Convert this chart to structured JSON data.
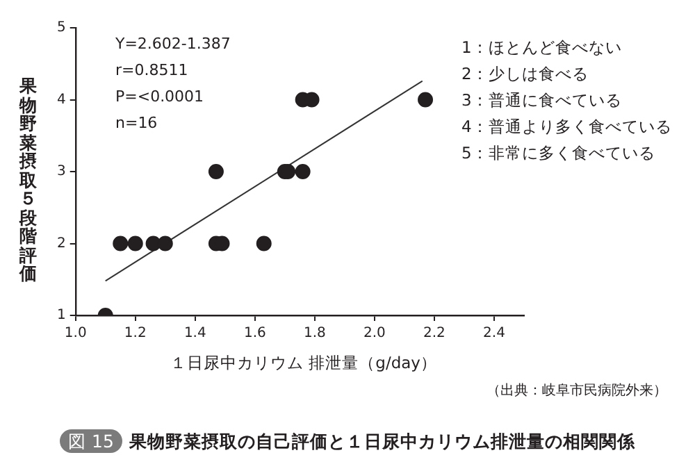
{
  "chart_data": {
    "type": "scatter",
    "title": "果物野菜摂取の自己評価と１日尿中カリウム排泄量の相関関係",
    "xlabel": "１日尿中カリウム 排泄量（g/day）",
    "ylabel": "果物野菜摂取５段階評価",
    "annotations": [
      "Y=2.602-1.387",
      "r=0.8511",
      "P=<0.0001",
      "n=16",
      "1：ほとんど食べない",
      "2：少しは食べる",
      "3：普通に食べている",
      "4：普通より多く食べている",
      "5：非常に多く食べている",
      "（出典：岐阜市民病院外来）",
      "図 15"
    ],
    "series": [
      {
        "color": "#231f20",
        "marker": "circle",
        "x": [
          1.1,
          1.15,
          1.2,
          1.26,
          1.3,
          1.47,
          1.47,
          1.49,
          1.63,
          1.7,
          1.71,
          1.76,
          1.76,
          1.79,
          2.17
        ],
        "values": [
          1,
          2,
          2,
          2,
          2,
          3,
          2,
          2,
          2,
          3,
          3,
          3,
          4,
          4,
          4
        ]
      },
      {
        "type": "line",
        "marker": "none",
        "color": "#333333",
        "x": [
          1.1,
          2.16
        ],
        "values": [
          1.48,
          4.26
        ]
      }
    ],
    "xlim": [
      1.0,
      2.5
    ],
    "xticks": [
      {
        "value": 1.0,
        "label": "1.0"
      },
      {
        "value": 1.2,
        "label": "1.2"
      },
      {
        "value": 1.4,
        "label": "1.4"
      },
      {
        "value": 1.6,
        "label": "1.6"
      },
      {
        "value": 1.8,
        "label": "1.8"
      },
      {
        "value": 2.0,
        "label": "2.0"
      },
      {
        "value": 2.2,
        "label": "2.2"
      },
      {
        "value": 2.4,
        "label": "2.4"
      }
    ],
    "ylim": [
      1,
      5
    ],
    "yticks": [
      1,
      2,
      3,
      4,
      5
    ],
    "grid": false,
    "legend": false
  }
}
